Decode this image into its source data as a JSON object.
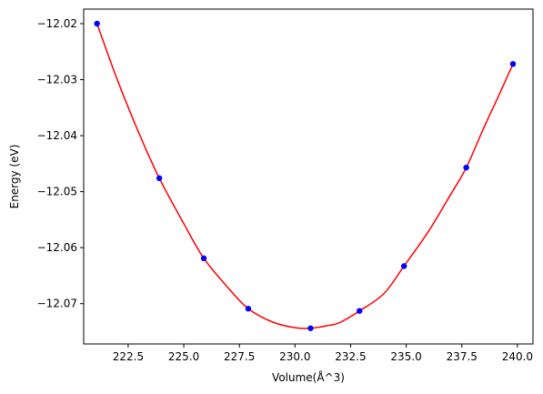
{
  "chart_data": {
    "type": "scatter",
    "title": "",
    "xlabel": "Volume(Å^3)",
    "ylabel": "Energy (eV)",
    "xlim": [
      220.5,
      240.7
    ],
    "ylim": [
      -12.0772,
      -12.0174
    ],
    "x_ticks": [
      222.5,
      225.0,
      227.5,
      230.0,
      232.5,
      235.0,
      237.5,
      240.0
    ],
    "x_tick_labels": [
      "222.5",
      "225.0",
      "227.5",
      "230.0",
      "232.5",
      "235.0",
      "237.5",
      "240.0"
    ],
    "y_ticks": [
      -12.02,
      -12.03,
      -12.04,
      -12.05,
      -12.06,
      -12.07
    ],
    "y_tick_labels": [
      "−12.02",
      "−12.03",
      "−12.04",
      "−12.05",
      "−12.06",
      "−12.07"
    ],
    "grid": false,
    "series": [
      {
        "kind": "points",
        "color": "#0000ff",
        "x": [
          221.1,
          223.9,
          225.9,
          227.9,
          230.7,
          232.9,
          234.9,
          237.7,
          239.8
        ],
        "y": [
          -12.02,
          -12.0476,
          -12.0619,
          -12.0709,
          -12.0744,
          -12.0713,
          -12.0633,
          -12.0457,
          -12.0272
        ]
      },
      {
        "kind": "fit-curve",
        "color": "#ff0000",
        "x": [
          221.1,
          222.0,
          223.0,
          223.9,
          225.0,
          225.9,
          227.0,
          227.9,
          229.0,
          230.0,
          230.7,
          231.5,
          232.0,
          232.9,
          234.0,
          234.9,
          236.0,
          237.0,
          237.7,
          238.5,
          239.2,
          239.8
        ],
        "y": [
          -12.02,
          -12.0299,
          -12.0397,
          -12.0476,
          -12.0557,
          -12.0619,
          -12.0672,
          -12.0709,
          -12.0733,
          -12.0743,
          -12.0744,
          -12.0739,
          -12.0734,
          -12.0713,
          -12.0682,
          -12.0633,
          -12.0571,
          -12.0505,
          -12.0457,
          -12.0385,
          -12.0325,
          -12.0272
        ]
      }
    ]
  }
}
